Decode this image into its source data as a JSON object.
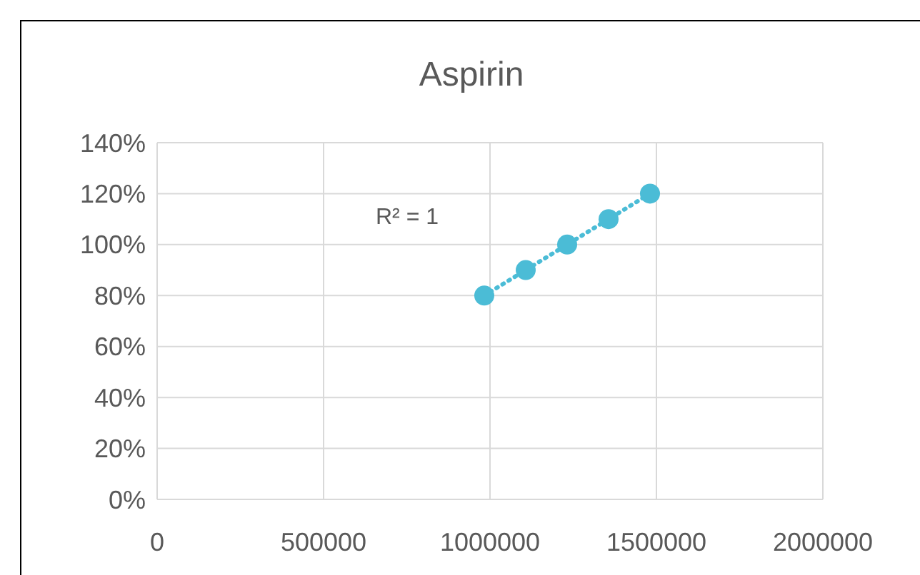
{
  "chart_data": {
    "type": "scatter",
    "title": "Aspirin",
    "annotations": [
      "R² = 1"
    ],
    "xlim": [
      0,
      2000000
    ],
    "xticks": [
      0,
      500000,
      1000000,
      1500000,
      2000000
    ],
    "ylim": [
      0,
      140
    ],
    "yticks": [
      {
        "value": 0,
        "label": "0%"
      },
      {
        "value": 20,
        "label": "20%"
      },
      {
        "value": 40,
        "label": "40%"
      },
      {
        "value": 60,
        "label": "60%"
      },
      {
        "value": 80,
        "label": "80%"
      },
      {
        "value": 100,
        "label": "100%"
      },
      {
        "value": 120,
        "label": "120%"
      },
      {
        "value": 140,
        "label": "140%"
      }
    ],
    "grid": true,
    "series": [
      {
        "type": "line",
        "color": "#4bbcd6",
        "line_style": "dotted",
        "marker": "none",
        "x": [
          982800,
          1480700
        ],
        "values": [
          80,
          120
        ]
      },
      {
        "type": "scatter",
        "color": "#4bbcd6",
        "marker": "circle",
        "x": [
          982800,
          1107300,
          1231800,
          1356200,
          1480700
        ],
        "values": [
          80,
          90,
          100,
          110,
          120
        ]
      }
    ]
  }
}
